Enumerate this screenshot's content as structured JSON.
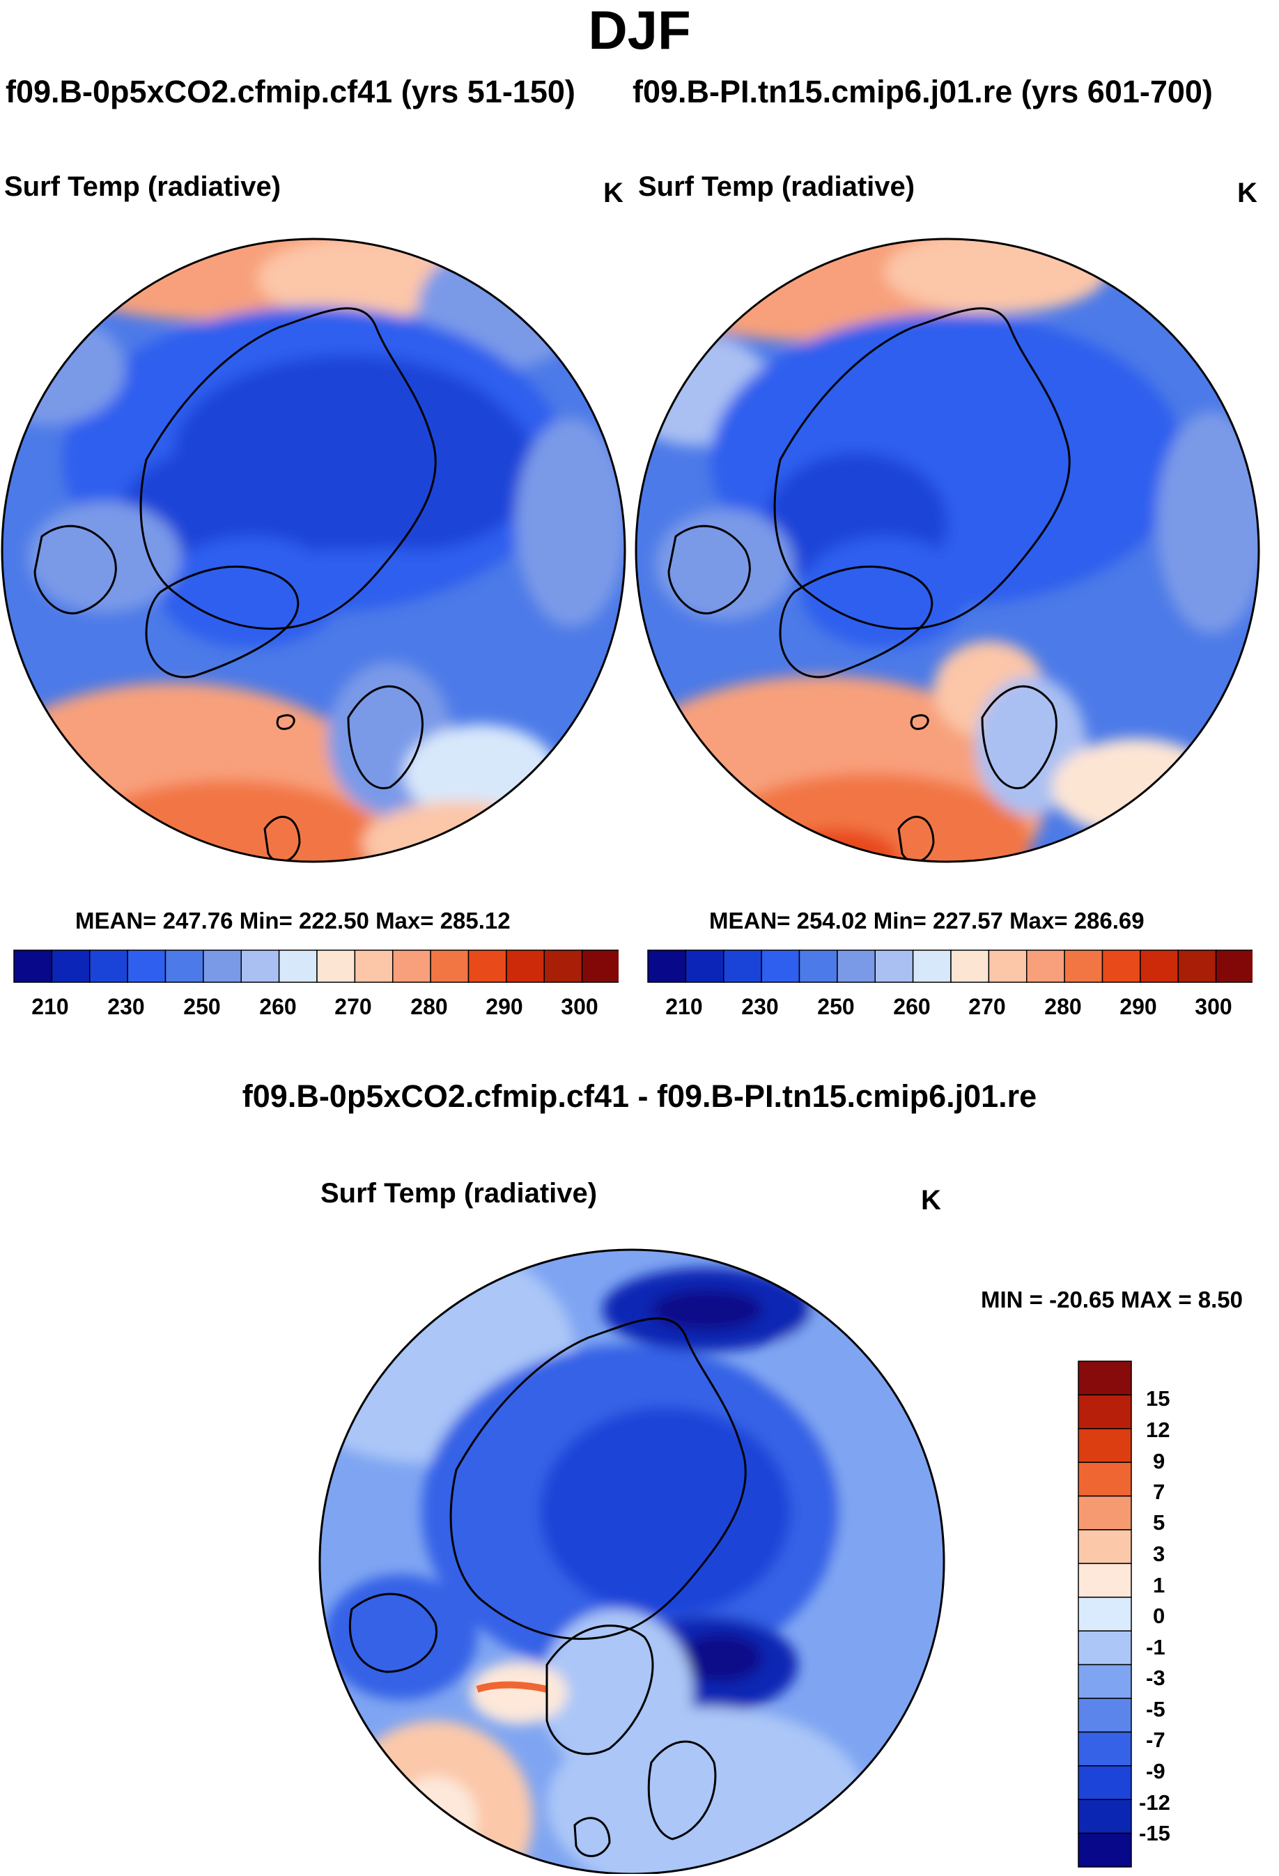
{
  "season": "DJF",
  "cases": {
    "left_title": "f09.B-0p5xCO2.cfmip.cf41 (yrs 51-150)",
    "right_title": "f09.B-PI.tn15.cmip6.j01.re (yrs 601-700)",
    "diff_title": "f09.B-0p5xCO2.cfmip.cf41 - f09.B-PI.tn15.cmip6.j01.re"
  },
  "panels": [
    {
      "id": "case1",
      "variable": "Surf Temp (radiative)",
      "units": "K",
      "stats_text": "MEAN= 247.76  Min= 222.50  Max= 285.12",
      "mean": 247.76,
      "min": 222.5,
      "max": 285.12
    },
    {
      "id": "case2",
      "variable": "Surf Temp (radiative)",
      "units": "K",
      "stats_text": "MEAN= 254.02  Min= 227.57  Max= 286.69",
      "mean": 254.02,
      "min": 227.57,
      "max": 286.69
    },
    {
      "id": "difference",
      "variable": "Surf Temp (radiative)",
      "units": "K",
      "stats_text": "MIN = -20.65 MAX =   8.50",
      "min": -20.65,
      "max": 8.5
    }
  ],
  "colorbars": {
    "abs_colors": [
      "#08088a",
      "#0a25b8",
      "#1a44d8",
      "#2e5fee",
      "#4c7ae8",
      "#7a9ae8",
      "#aac0f2",
      "#d8e8fb",
      "#fde5d4",
      "#fcc6a8",
      "#f8a07c",
      "#f27644",
      "#e84a1a",
      "#cc2a08",
      "#a81e06",
      "#820808"
    ],
    "abs_ticks": [
      "210",
      "230",
      "250",
      "260",
      "270",
      "280",
      "290",
      "300"
    ],
    "diff_colors": [
      "#880b0b",
      "#b81f0a",
      "#dc3e12",
      "#f06633",
      "#f69a72",
      "#fbc8aa",
      "#fde8da",
      "#d9ebfc",
      "#abc6f7",
      "#7fa5f2",
      "#5b85eb",
      "#3562e6",
      "#1c44d8",
      "#0c26b4",
      "#08088a"
    ],
    "diff_ticks": [
      "15",
      "12",
      "9",
      "7",
      "5",
      "3",
      "1",
      "0",
      "-1",
      "-3",
      "-5",
      "-7",
      "-9",
      "-12",
      "-15"
    ]
  }
}
